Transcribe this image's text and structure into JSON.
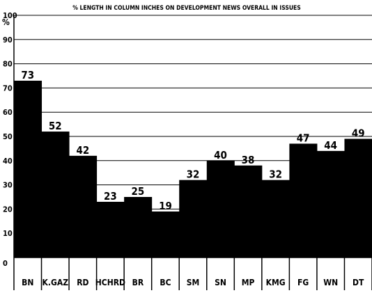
{
  "chart_data": {
    "type": "bar",
    "title": "% LENGTH IN COLUMN INCHES ON DEVELOPMENT NEWS OVERALL IN ISSUES",
    "y_unit_label": "%",
    "categories": [
      "BN",
      "K.GAZ",
      "RD",
      "HCHRD",
      "BR",
      "BC",
      "SM",
      "SN",
      "MP",
      "KMG",
      "FG",
      "WN",
      "DT"
    ],
    "values": [
      73,
      52,
      42,
      23,
      25,
      19,
      32,
      40,
      38,
      32,
      47,
      44,
      49
    ],
    "value_labels": [
      "73",
      "52",
      "42",
      "23",
      "25",
      "19",
      "32",
      "40",
      "38",
      "32",
      "47",
      "44",
      "49"
    ],
    "yticks": [
      0,
      10,
      20,
      30,
      40,
      50,
      60,
      70,
      80,
      90,
      100
    ],
    "ytick_labels": [
      "0",
      "10",
      "20",
      "30",
      "40",
      "50",
      "60",
      "70",
      "80",
      "90",
      "100"
    ],
    "ylim": [
      0,
      100
    ],
    "grid": true,
    "legend": "none",
    "colors": {
      "bar": "#000000",
      "grid": "#000000",
      "background": "#ffffff",
      "text": "#000000"
    }
  }
}
